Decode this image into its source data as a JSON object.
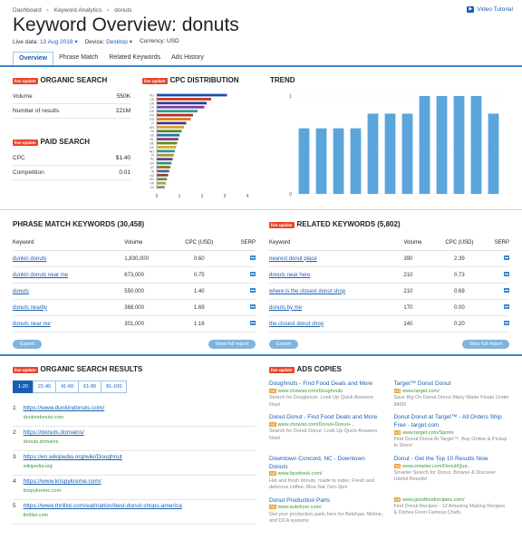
{
  "breadcrumb": [
    "Dashboard",
    "›",
    "Keyword Analytics",
    "›",
    "donuts"
  ],
  "video_tutorial": "Video Tutorial",
  "page_title": "Keyword Overview: donuts",
  "meta": {
    "date_label": "Live data:",
    "date_value": "13 Aug 2018 ▾",
    "device_label": "Device:",
    "device_value": "Desktop ▾",
    "currency": "Currency: USD"
  },
  "tabs": [
    "Overview",
    "Phrase Match",
    "Related Keywords",
    "Ads History"
  ],
  "live_update": "live update",
  "organic": {
    "title": "ORGANIC SEARCH",
    "rows": [
      {
        "label": "Volume",
        "value": "550K"
      },
      {
        "label": "Number of results",
        "value": "221M"
      }
    ]
  },
  "paid": {
    "title": "PAID SEARCH",
    "rows": [
      {
        "label": "CPC",
        "value": "$1.40"
      },
      {
        "label": "Competition",
        "value": "0.01"
      }
    ]
  },
  "cpc_dist": {
    "title": "CPC DISTRIBUTION"
  },
  "trend": {
    "title": "TREND"
  },
  "chart_data": [
    {
      "type": "bar",
      "title": "CPC DISTRIBUTION",
      "orientation": "horizontal",
      "categories": [
        "AU",
        "US",
        "UK",
        "CA",
        "DE",
        "FR",
        "ES",
        "IT",
        "BR",
        "IN",
        "SE",
        "NL",
        "BE",
        "DK",
        "NO",
        "FI",
        "PL",
        "CH",
        "AT",
        "IE",
        "NZ",
        "SG",
        "HK",
        "ZA"
      ],
      "values": [
        3.1,
        2.4,
        2.2,
        2.1,
        1.8,
        1.6,
        1.5,
        1.3,
        1.2,
        1.1,
        1.0,
        0.95,
        0.9,
        0.85,
        0.8,
        0.75,
        0.7,
        0.65,
        0.6,
        0.55,
        0.5,
        0.45,
        0.4,
        0.35
      ],
      "xlim": [
        0,
        4
      ],
      "xticks": [
        "0",
        "1",
        "2",
        "3",
        "4"
      ],
      "colors": [
        "#1a4fb0",
        "#c0392b",
        "#2c3e8f",
        "#7b3fa0",
        "#2f9e8f",
        "#b5312a",
        "#d87a1f",
        "#3a3a8f",
        "#d8a12a",
        "#4b8f3a",
        "#2a6fa0",
        "#8f3a6f",
        "#5a8f2a",
        "#c8b32a",
        "#3a8fa0",
        "#9a9a2a",
        "#6a3a9a",
        "#2a9a6a",
        "#a06a2a",
        "#3a6aa0",
        "#9a3a3a",
        "#4a9a4a",
        "#c09a3a",
        "#8a8a8a"
      ]
    },
    {
      "type": "bar",
      "title": "TREND",
      "categories": [
        "1",
        "2",
        "3",
        "4",
        "5",
        "6",
        "7",
        "8",
        "9",
        "10",
        "11",
        "12"
      ],
      "values": [
        0.67,
        0.67,
        0.67,
        0.67,
        0.82,
        0.82,
        0.82,
        1.0,
        1.0,
        1.0,
        1.0,
        0.82
      ],
      "ylim": [
        0,
        1
      ],
      "yticks": [
        "0",
        "1"
      ],
      "color": "#5aa5dc"
    }
  ],
  "phrase": {
    "title": "PHRASE MATCH KEYWORDS (30,458)",
    "headers": [
      "Keyword",
      "Volume",
      "CPC (USD)",
      "SERP"
    ],
    "rows": [
      {
        "kw": "dunkin donuts",
        "vol": "1,830,000",
        "cpc": "0.60"
      },
      {
        "kw": "dunkin donuts near me",
        "vol": "673,000",
        "cpc": "0.75"
      },
      {
        "kw": "donuts",
        "vol": "550,000",
        "cpc": "1.40"
      },
      {
        "kw": "donuts nearby",
        "vol": "368,000",
        "cpc": "1.69"
      },
      {
        "kw": "donuts near me",
        "vol": "301,000",
        "cpc": "1.16"
      }
    ],
    "export": "Export",
    "view": "View full report"
  },
  "related": {
    "title": "RELATED KEYWORDS (5,802)",
    "headers": [
      "Keyword",
      "Volume",
      "CPC (USD)",
      "SERP"
    ],
    "rows": [
      {
        "kw": "nearest donut place",
        "vol": "390",
        "cpc": "2.39"
      },
      {
        "kw": "donuts near here",
        "vol": "210",
        "cpc": "0.73"
      },
      {
        "kw": "where is the closest donut shop",
        "vol": "210",
        "cpc": "0.69"
      },
      {
        "kw": "donuts by me",
        "vol": "170",
        "cpc": "0.00"
      },
      {
        "kw": "the closest donut shop",
        "vol": "140",
        "cpc": "0.20"
      }
    ],
    "export": "Export",
    "view": "View full report"
  },
  "organic_results": {
    "title": "ORGANIC SEARCH RESULTS",
    "pager": [
      "1-20",
      "21-40",
      "41-60",
      "61-80",
      "81-100"
    ],
    "items": [
      {
        "n": "1",
        "url": "https://www.dunkindonuts.com/",
        "domain": "dunkindonuts.com"
      },
      {
        "n": "2",
        "url": "https://donuts.domains/",
        "domain": "donuts.domains"
      },
      {
        "n": "3",
        "url": "https://en.wikipedia.org/wiki/Doughnut",
        "domain": "wikipedia.org"
      },
      {
        "n": "4",
        "url": "https://www.krispykreme.com/",
        "domain": "krispykreme.com"
      },
      {
        "n": "5",
        "url": "https://www.thrillist.com/eat/nation/best-donut-shops-america",
        "domain": "thrillist.com"
      }
    ]
  },
  "ads": {
    "title": "ADS COPIES",
    "ad_tag": "Ad",
    "items": [
      {
        "h": "Doughnuts - Find Food Deals and More",
        "u": "www.chowist.com/Doughnuts",
        "d": "Search for Doughnuts. Look Up Quick Answers Now!"
      },
      {
        "h": "Target™ Donut Donut",
        "u": "www.target.com/",
        "d": "Save Big On Donut Donut Many Water Floats Under $400!"
      },
      {
        "h": "Donut Donut - Find Food Deals and More",
        "u": "www.chowist.com/Donut+Donut+...",
        "d": "Search for Donut Donut. Look Up Quick Answers Now!"
      },
      {
        "h": "Donut Donut at Target™ - All Orders Ship Free - target.com",
        "u": "www.target.com/Sports",
        "d": "Find Donut Donut At Target™. Buy Online & Pickup In Store!"
      },
      {
        "h": "Downtown Concord, NC - Downtown Donuts",
        "u": "www.facebook.com/",
        "d": "Hot and fresh donuts, made to order. Fresh and delicious coffee. Mon-Sat 7am-3pm"
      },
      {
        "h": "Donut - Get the Top 10 Results Now",
        "u": "www.smarter.com/Donut/Qua...",
        "d": "Smarter Search for Donut. Browse & Discover Useful Results!"
      },
      {
        "h": "Donut Production Parts",
        "u": "www.autofryer.com/",
        "d": "Get your production parts here for Belshaw, Moline, and DCA systems"
      },
      {
        "h": "",
        "u": "www.goodfoodrecipies.com/",
        "d": "Find Donut Recipes - 12 Amazing Making Recipes & Dishes From Famous Chefs."
      }
    ]
  }
}
